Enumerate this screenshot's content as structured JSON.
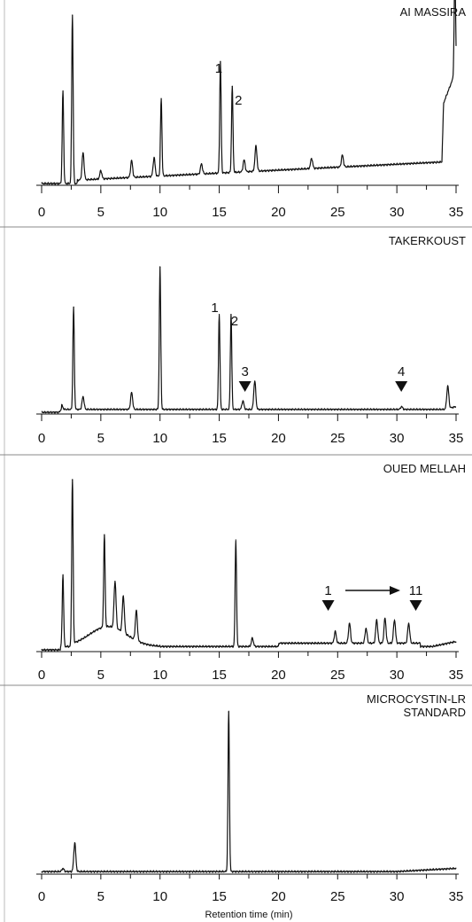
{
  "chart_data": [
    {
      "type": "line",
      "title": "AI MASSIRA",
      "xlim": [
        0,
        35
      ],
      "xticks": [
        0,
        5,
        10,
        15,
        20,
        25,
        30,
        35
      ],
      "grid": false,
      "peaks": [
        {
          "x": 1.8,
          "y": 0.55
        },
        {
          "x": 2.6,
          "y": 1.0
        },
        {
          "x": 3.5,
          "y": 0.16
        },
        {
          "x": 5.0,
          "y": 0.05
        },
        {
          "x": 7.6,
          "y": 0.1
        },
        {
          "x": 9.5,
          "y": 0.11
        },
        {
          "x": 10.1,
          "y": 0.46
        },
        {
          "x": 13.5,
          "y": 0.06
        },
        {
          "x": 15.1,
          "y": 0.66
        },
        {
          "x": 16.1,
          "y": 0.51
        },
        {
          "x": 17.1,
          "y": 0.07
        },
        {
          "x": 18.1,
          "y": 0.15
        },
        {
          "x": 22.8,
          "y": 0.06
        },
        {
          "x": 25.4,
          "y": 0.07
        },
        {
          "x": 34.9,
          "y": 0.6
        }
      ],
      "annotations": [
        {
          "text": "1",
          "x": 15.1
        },
        {
          "text": "2",
          "x": 16.1
        }
      ]
    },
    {
      "type": "line",
      "title": "TAKERKOUST",
      "xlim": [
        0,
        35
      ],
      "xticks": [
        0,
        5,
        10,
        15,
        20,
        25,
        30,
        35
      ],
      "grid": false,
      "peaks": [
        {
          "x": 1.7,
          "y": 0.03
        },
        {
          "x": 2.7,
          "y": 0.72
        },
        {
          "x": 3.5,
          "y": 0.09
        },
        {
          "x": 7.6,
          "y": 0.12
        },
        {
          "x": 10.0,
          "y": 1.0
        },
        {
          "x": 15.0,
          "y": 0.67
        },
        {
          "x": 16.0,
          "y": 0.67
        },
        {
          "x": 17.0,
          "y": 0.06
        },
        {
          "x": 18.0,
          "y": 0.2
        },
        {
          "x": 30.4,
          "y": 0.02
        },
        {
          "x": 34.3,
          "y": 0.16
        }
      ],
      "annotations": [
        {
          "text": "1",
          "x": 15.0
        },
        {
          "text": "2",
          "x": 16.0
        },
        {
          "text": "3",
          "x": 17.1
        },
        {
          "text": "4",
          "x": 30.3
        }
      ]
    },
    {
      "type": "line",
      "title": "OUED MELLAH",
      "xlim": [
        0,
        35
      ],
      "xticks": [
        0,
        5,
        10,
        15,
        20,
        25,
        30,
        35
      ],
      "grid": false,
      "peaks": [
        {
          "x": 1.8,
          "y": 0.43
        },
        {
          "x": 2.6,
          "y": 1.0
        },
        {
          "x": 5.3,
          "y": 0.55
        },
        {
          "x": 6.2,
          "y": 0.28
        },
        {
          "x": 6.9,
          "y": 0.22
        },
        {
          "x": 8.0,
          "y": 0.18
        },
        {
          "x": 16.4,
          "y": 0.64
        },
        {
          "x": 17.8,
          "y": 0.05
        },
        {
          "x": 24.8,
          "y": 0.07
        },
        {
          "x": 26.0,
          "y": 0.12
        },
        {
          "x": 27.4,
          "y": 0.09
        },
        {
          "x": 28.3,
          "y": 0.14
        },
        {
          "x": 29.0,
          "y": 0.15
        },
        {
          "x": 29.8,
          "y": 0.14
        },
        {
          "x": 31.0,
          "y": 0.12
        }
      ],
      "annotations": [
        {
          "text": "1",
          "x": 24.2
        },
        {
          "text": "11",
          "x": 31.3
        }
      ]
    },
    {
      "type": "line",
      "title": "MICROCYSTIN-LR STANDARD",
      "title_lines": [
        "MICROCYSTIN-LR",
        "STANDARD"
      ],
      "xlabel": "Retention time (min)",
      "xlim": [
        0,
        35
      ],
      "xticks": [
        0,
        5,
        10,
        15,
        20,
        25,
        30,
        35
      ],
      "grid": false,
      "peaks": [
        {
          "x": 1.8,
          "y": 0.02
        },
        {
          "x": 2.8,
          "y": 0.18
        },
        {
          "x": 15.8,
          "y": 1.0
        }
      ]
    }
  ]
}
